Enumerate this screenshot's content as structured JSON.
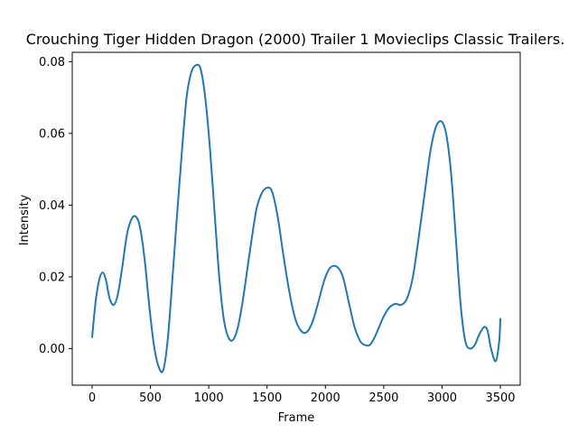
{
  "chart_data": {
    "type": "line",
    "title": "Crouching Tiger Hidden Dragon (2000) Trailer 1  Movieclips Classic Trailers.",
    "xlabel": "Frame",
    "ylabel": "Intensity",
    "xlim": [
      -170,
      3670
    ],
    "ylim": [
      -0.0102,
      0.0826
    ],
    "xticks": [
      0,
      500,
      1000,
      1500,
      2000,
      2500,
      3000,
      3500
    ],
    "yticks": [
      0.0,
      0.02,
      0.04,
      0.06,
      0.08
    ],
    "ytick_labels": [
      "0.00",
      "0.02",
      "0.04",
      "0.06",
      "0.08"
    ],
    "grid": false,
    "series": [
      {
        "color": "#1f77b4",
        "x": [
          0,
          30,
          60,
          90,
          120,
          150,
          185,
          220,
          260,
          300,
          340,
          375,
          410,
          450,
          490,
          530,
          570,
          610,
          650,
          690,
          730,
          770,
          810,
          850,
          890,
          930,
          970,
          1010,
          1050,
          1090,
          1130,
          1170,
          1210,
          1250,
          1290,
          1330,
          1370,
          1410,
          1450,
          1490,
          1540,
          1590,
          1640,
          1690,
          1740,
          1790,
          1840,
          1890,
          1940,
          1990,
          2040,
          2100,
          2150,
          2200,
          2250,
          2300,
          2340,
          2380,
          2420,
          2460,
          2500,
          2550,
          2600,
          2650,
          2700,
          2750,
          2800,
          2850,
          2900,
          2950,
          3000,
          3040,
          3080,
          3120,
          3160,
          3200,
          3240,
          3280,
          3320,
          3360,
          3390,
          3420,
          3460,
          3490,
          3500
        ],
        "y": [
          0.003,
          0.013,
          0.019,
          0.0212,
          0.019,
          0.014,
          0.0122,
          0.015,
          0.023,
          0.032,
          0.0362,
          0.0368,
          0.034,
          0.025,
          0.012,
          0.001,
          -0.005,
          -0.006,
          0.003,
          0.02,
          0.038,
          0.055,
          0.07,
          0.077,
          0.079,
          0.078,
          0.07,
          0.056,
          0.038,
          0.02,
          0.008,
          0.003,
          0.0025,
          0.006,
          0.013,
          0.022,
          0.031,
          0.039,
          0.043,
          0.0447,
          0.044,
          0.037,
          0.026,
          0.016,
          0.0085,
          0.005,
          0.0046,
          0.0075,
          0.013,
          0.019,
          0.0225,
          0.0228,
          0.02,
          0.013,
          0.006,
          0.002,
          0.001,
          0.001,
          0.003,
          0.006,
          0.009,
          0.0115,
          0.0125,
          0.0122,
          0.014,
          0.02,
          0.031,
          0.043,
          0.055,
          0.062,
          0.0632,
          0.059,
          0.048,
          0.03,
          0.012,
          0.002,
          0.0,
          0.001,
          0.004,
          0.006,
          0.005,
          0.0,
          -0.0035,
          0.002,
          0.0085
        ]
      }
    ]
  }
}
